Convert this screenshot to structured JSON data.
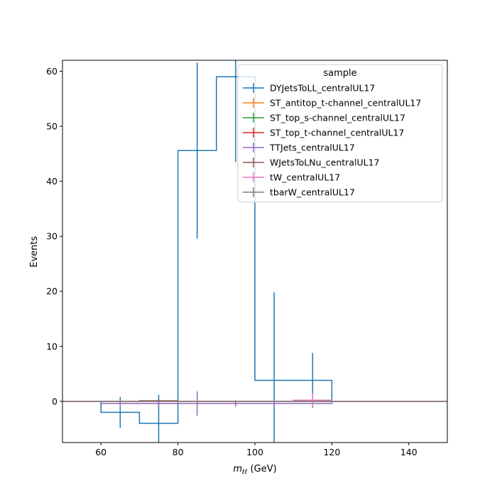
{
  "chart_data": {
    "type": "histogram",
    "xlabel_var": "m",
    "xlabel_sub": "ℓℓ",
    "xlabel_unit": " (GeV)",
    "ylabel": "Events",
    "xlim": [
      50,
      150
    ],
    "ylim": [
      -7.5,
      62
    ],
    "xticks": [
      60,
      80,
      100,
      120,
      140
    ],
    "yticks": [
      0,
      10,
      20,
      30,
      40,
      50,
      60
    ],
    "legend_title": "sample",
    "legend_position": "upper right",
    "bin_edges": [
      50,
      60,
      70,
      80,
      90,
      100,
      110,
      120,
      130,
      140,
      150
    ],
    "series": [
      {
        "name": "DYJetsToLL_centralUL17",
        "color": "#1f77b4",
        "values": [
          0,
          -2.0,
          -4.0,
          45.6,
          59.0,
          3.8,
          3.8,
          0,
          0,
          0
        ],
        "errors": [
          0,
          2.8,
          5.2,
          16.0,
          15.5,
          16.0,
          5.0,
          0,
          0,
          0
        ]
      },
      {
        "name": "ST_antitop_t-channel_centralUL17",
        "color": "#ff7f0e",
        "values": [
          0,
          0,
          0,
          0,
          0,
          0,
          0,
          0,
          0,
          0
        ],
        "errors": [
          0,
          0,
          0,
          0,
          0,
          0,
          0,
          0,
          0,
          0
        ]
      },
      {
        "name": "ST_top_s-channel_centralUL17",
        "color": "#2ca02c",
        "values": [
          0,
          0,
          0,
          0,
          0,
          0,
          0,
          0,
          0,
          0
        ],
        "errors": [
          0,
          0,
          0,
          0,
          0,
          0,
          0,
          0,
          0,
          0
        ]
      },
      {
        "name": "ST_top_t-channel_centralUL17",
        "color": "#d62728",
        "values": [
          0,
          0,
          0,
          0,
          0,
          0,
          0,
          0,
          0,
          0
        ],
        "errors": [
          0,
          0,
          0,
          0,
          0,
          0,
          0,
          0,
          0,
          0
        ]
      },
      {
        "name": "TTJets_centralUL17",
        "color": "#9467bd",
        "values": [
          0,
          -0.4,
          -0.4,
          -0.4,
          -0.4,
          -0.4,
          -0.4,
          0,
          0,
          0
        ],
        "errors": [
          0,
          0.6,
          0.6,
          2.2,
          0.6,
          0.6,
          0.6,
          0,
          0,
          0
        ]
      },
      {
        "name": "WJetsToLNu_centralUL17",
        "color": "#8c564b",
        "values": [
          0,
          0,
          0.1,
          0,
          0,
          0,
          0.1,
          0,
          0,
          0
        ],
        "errors": [
          0,
          0,
          0.2,
          0,
          0,
          0,
          0.2,
          0,
          0,
          0
        ]
      },
      {
        "name": "tW_centralUL17",
        "color": "#e377c2",
        "values": [
          0,
          0,
          0,
          0,
          0,
          0,
          0.2,
          0,
          0,
          0
        ],
        "errors": [
          0,
          0,
          0,
          0,
          0,
          0,
          1.2,
          0,
          0,
          0
        ]
      },
      {
        "name": "tbarW_centralUL17",
        "color": "#7f7f7f",
        "values": [
          0,
          0,
          0,
          0,
          0,
          0,
          0,
          0,
          0,
          0
        ],
        "errors": [
          0,
          0,
          0,
          0,
          0,
          0,
          0,
          0,
          0,
          0
        ]
      }
    ]
  }
}
